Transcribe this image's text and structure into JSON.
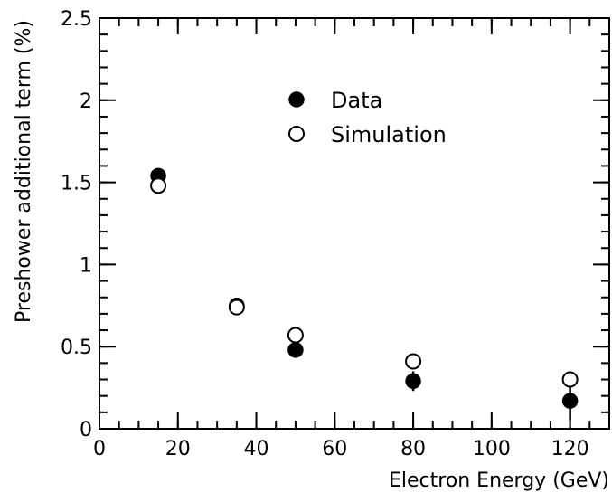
{
  "chart_data": {
    "type": "scatter",
    "xlabel": "Electron Energy (GeV)",
    "ylabel": "Preshower additional term (%)",
    "xlim": [
      0,
      130
    ],
    "ylim": [
      0,
      2.5
    ],
    "x_ticks": [
      0,
      20,
      40,
      60,
      80,
      100,
      120
    ],
    "y_ticks": [
      0,
      0.5,
      1,
      1.5,
      2,
      2.5
    ],
    "x_tick_labels": [
      "0",
      "20",
      "40",
      "60",
      "80",
      "100",
      "120"
    ],
    "y_tick_labels": [
      "0",
      "0.5",
      "1",
      "1.5",
      "2",
      "2.5"
    ],
    "x_minor_step": 5,
    "y_minor_step": 0.1,
    "grid": false,
    "legend_position": "top-center",
    "series": [
      {
        "name": "Data",
        "marker": "filled-circle",
        "color": "#000000",
        "points": [
          {
            "x": 15,
            "y": 1.54,
            "err": 0.0
          },
          {
            "x": 35,
            "y": 0.75,
            "err": 0.0
          },
          {
            "x": 50,
            "y": 0.48,
            "err": 0.0
          },
          {
            "x": 80,
            "y": 0.29,
            "err": 0.06
          },
          {
            "x": 120,
            "y": 0.17,
            "err": 0.12
          }
        ]
      },
      {
        "name": "Simulation",
        "marker": "open-circle",
        "color": "#000000",
        "points": [
          {
            "x": 15,
            "y": 1.48
          },
          {
            "x": 35,
            "y": 0.74
          },
          {
            "x": 50,
            "y": 0.57
          },
          {
            "x": 80,
            "y": 0.41
          },
          {
            "x": 120,
            "y": 0.3
          }
        ]
      }
    ]
  }
}
